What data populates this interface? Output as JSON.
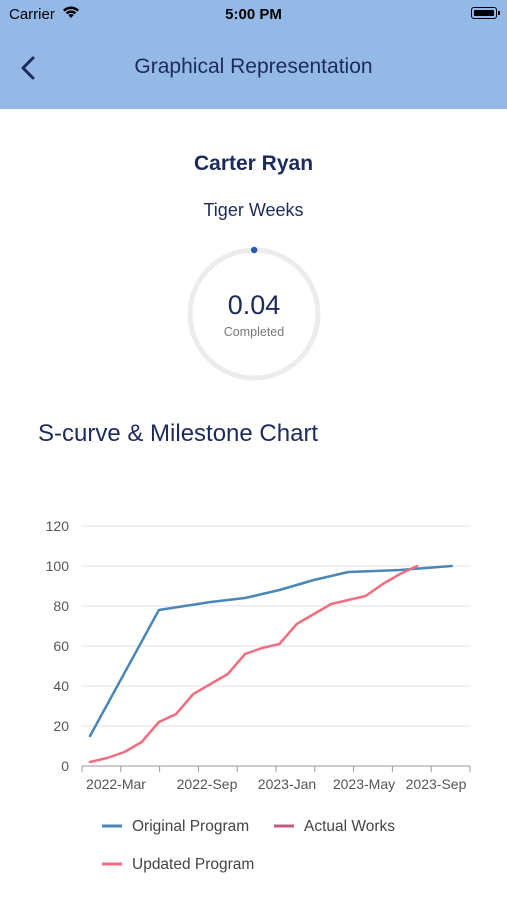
{
  "status_bar": {
    "carrier": "Carrier",
    "time": "5:00 PM"
  },
  "header": {
    "title": "Graphical Representation",
    "background": "#94b9e6"
  },
  "profile": {
    "name": "Carter Ryan",
    "subtitle": "Tiger Weeks"
  },
  "progress": {
    "value": "0.04",
    "label": "Completed",
    "fraction": 0.0004
  },
  "section_title": "S-curve & Milestone Chart",
  "chart_data": {
    "type": "line",
    "x_ticks": [
      "2022-Mar",
      "2022-Sep",
      "2023-Jan",
      "2023-May",
      "2023-Sep"
    ],
    "y_ticks": [
      "0",
      "20",
      "40",
      "60",
      "80",
      "100",
      "120"
    ],
    "ylim": [
      0,
      120
    ],
    "grid": true,
    "legend_position": "bottom",
    "legend": [
      "Original Program",
      "Actual Works",
      "Updated Program"
    ],
    "series": [
      {
        "name": "Original Program",
        "color": "#4a86b8",
        "points": [
          [
            "2022-01",
            15
          ],
          [
            "2022-05",
            78
          ],
          [
            "2022-08",
            82
          ],
          [
            "2022-10",
            84
          ],
          [
            "2022-12",
            88
          ],
          [
            "2023-02",
            93
          ],
          [
            "2023-04",
            97
          ],
          [
            "2023-07",
            98
          ],
          [
            "2023-10",
            100
          ]
        ]
      },
      {
        "name": "Actual Works",
        "color": "#c25c7e",
        "points": []
      },
      {
        "name": "Updated Program",
        "color": "#f06e7e",
        "points": [
          [
            "2022-01",
            2
          ],
          [
            "2022-02",
            4
          ],
          [
            "2022-03",
            7
          ],
          [
            "2022-04",
            12
          ],
          [
            "2022-05",
            22
          ],
          [
            "2022-06",
            26
          ],
          [
            "2022-07",
            36
          ],
          [
            "2022-08",
            41
          ],
          [
            "2022-09",
            46
          ],
          [
            "2022-10",
            56
          ],
          [
            "2022-11",
            59
          ],
          [
            "2022-12",
            61
          ],
          [
            "2023-01",
            71
          ],
          [
            "2023-02",
            76
          ],
          [
            "2023-03",
            81
          ],
          [
            "2023-04",
            83
          ],
          [
            "2023-05",
            85
          ],
          [
            "2023-06",
            91
          ],
          [
            "2023-07",
            96
          ],
          [
            "2023-08",
            100
          ]
        ]
      }
    ]
  }
}
